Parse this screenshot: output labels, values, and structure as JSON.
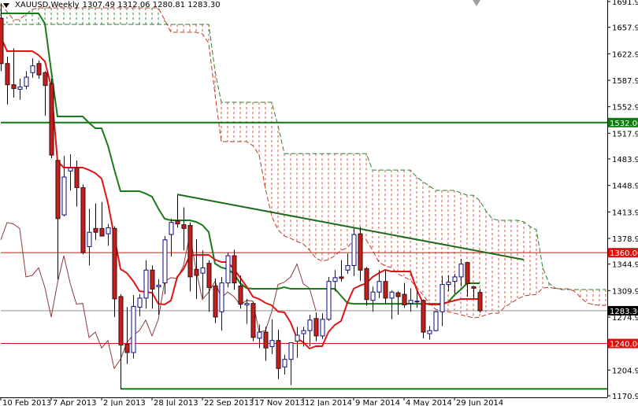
{
  "header": {
    "symbol": "XAUUSD,Weekly",
    "ohlc": "1307.49 1312.06 1280.81 1283.30"
  },
  "chart_data": {
    "type": "candlestick",
    "indicator": "Ichimoku Kinko Hyo",
    "interval": "weekly",
    "ylim": [
      1170.9,
      1691.9
    ],
    "y_ticks": [
      "1691.90",
      "1657.90",
      "1622.90",
      "1587.90",
      "1552.90",
      "1517.90",
      "1483.90",
      "1448.90",
      "1413.90",
      "1378.90",
      "1344.90",
      "1309.90",
      "1274.90",
      "1204.90",
      "1170.90"
    ],
    "x_ticks": [
      {
        "date": "2013-02-10",
        "label": "10 Feb 2013"
      },
      {
        "date": "2013-04-07",
        "label": "7 Apr 2013"
      },
      {
        "date": "2013-06-02",
        "label": "2 Jun 2013"
      },
      {
        "date": "2013-07-28",
        "label": "28 Jul 2013"
      },
      {
        "date": "2013-09-22",
        "label": "22 Sep 2013"
      },
      {
        "date": "2013-11-17",
        "label": "17 Nov 2013"
      },
      {
        "date": "2014-01-12",
        "label": "12 Jan 2014"
      },
      {
        "date": "2014-03-09",
        "label": "9 Mar 2014"
      },
      {
        "date": "2014-05-04",
        "label": "4 May 2014"
      },
      {
        "date": "2014-06-29",
        "label": "29 Jun 2014"
      }
    ],
    "candle_fields": [
      "date",
      "open",
      "high",
      "low",
      "close"
    ],
    "candles": [
      [
        "2013-02-10",
        1670,
        1690,
        1600,
        1610
      ],
      [
        "2013-02-17",
        1610,
        1619,
        1556,
        1582
      ],
      [
        "2013-02-24",
        1582,
        1630,
        1565,
        1577
      ],
      [
        "2013-03-03",
        1576,
        1590,
        1562,
        1579
      ],
      [
        "2013-03-10",
        1580,
        1600,
        1576,
        1592
      ],
      [
        "2013-03-17",
        1598,
        1617,
        1591,
        1607
      ],
      [
        "2013-03-24",
        1610,
        1614,
        1590,
        1595
      ],
      [
        "2013-03-31",
        1598,
        1600,
        1541,
        1581
      ],
      [
        "2013-04-07",
        1583,
        1590,
        1485,
        1489
      ],
      [
        "2013-04-14",
        1482,
        1482,
        1325,
        1405
      ],
      [
        "2013-04-21",
        1410,
        1488,
        1408,
        1460
      ],
      [
        "2013-04-28",
        1468,
        1490,
        1442,
        1472
      ],
      [
        "2013-05-05",
        1472,
        1482,
        1421,
        1446
      ],
      [
        "2013-05-12",
        1446,
        1450,
        1358,
        1360
      ],
      [
        "2013-05-19",
        1368,
        1418,
        1343,
        1387
      ],
      [
        "2013-05-26",
        1392,
        1425,
        1377,
        1387
      ],
      [
        "2013-06-02",
        1392,
        1427,
        1382,
        1382
      ],
      [
        "2013-06-09",
        1385,
        1398,
        1369,
        1393
      ],
      [
        "2013-06-16",
        1392,
        1395,
        1275,
        1299
      ],
      [
        "2013-06-23",
        1302,
        1305,
        1180,
        1238
      ],
      [
        "2013-06-30",
        1239,
        1288,
        1213,
        1228
      ],
      [
        "2013-07-07",
        1228,
        1304,
        1220,
        1289
      ],
      [
        "2013-07-14",
        1288,
        1305,
        1276,
        1300
      ],
      [
        "2013-07-21",
        1300,
        1350,
        1286,
        1337
      ],
      [
        "2013-07-28",
        1337,
        1343,
        1286,
        1312
      ],
      [
        "2013-08-04",
        1315,
        1325,
        1278,
        1317
      ],
      [
        "2013-08-11",
        1320,
        1382,
        1305,
        1377
      ],
      [
        "2013-08-18",
        1384,
        1405,
        1355,
        1400
      ],
      [
        "2013-08-25",
        1402,
        1436,
        1393,
        1398
      ],
      [
        "2013-09-01",
        1397,
        1420,
        1363,
        1392
      ],
      [
        "2013-09-08",
        1396,
        1400,
        1309,
        1328
      ],
      [
        "2013-09-15",
        1338,
        1378,
        1299,
        1330
      ],
      [
        "2013-09-22",
        1333,
        1363,
        1300,
        1340
      ],
      [
        "2013-09-29",
        1346,
        1350,
        1282,
        1314
      ],
      [
        "2013-10-06",
        1316,
        1326,
        1267,
        1275
      ],
      [
        "2013-10-13",
        1282,
        1328,
        1257,
        1320
      ],
      [
        "2013-10-20",
        1320,
        1360,
        1314,
        1356
      ],
      [
        "2013-10-27",
        1356,
        1364,
        1311,
        1320
      ],
      [
        "2013-11-03",
        1316,
        1330,
        1286,
        1292
      ],
      [
        "2013-11-10",
        1291,
        1299,
        1266,
        1293
      ],
      [
        "2013-11-17",
        1293,
        1295,
        1243,
        1248
      ],
      [
        "2013-11-24",
        1247,
        1265,
        1234,
        1255
      ],
      [
        "2013-12-01",
        1255,
        1262,
        1217,
        1234
      ],
      [
        "2013-12-08",
        1236,
        1272,
        1226,
        1244
      ],
      [
        "2013-12-15",
        1244,
        1258,
        1193,
        1207
      ],
      [
        "2013-12-22",
        1209,
        1225,
        1199,
        1219
      ],
      [
        "2013-12-29",
        1219,
        1241,
        1185,
        1241
      ],
      [
        "2014-01-05",
        1243,
        1262,
        1221,
        1251
      ],
      [
        "2014-01-12",
        1253,
        1262,
        1236,
        1257
      ],
      [
        "2014-01-19",
        1257,
        1278,
        1236,
        1271
      ],
      [
        "2014-01-26",
        1273,
        1281,
        1243,
        1250
      ],
      [
        "2014-02-02",
        1250,
        1280,
        1246,
        1272
      ],
      [
        "2014-02-09",
        1272,
        1328,
        1270,
        1322
      ],
      [
        "2014-02-16",
        1322,
        1337,
        1309,
        1327
      ],
      [
        "2014-02-23",
        1328,
        1350,
        1322,
        1326
      ],
      [
        "2014-03-02",
        1337,
        1359,
        1332,
        1343
      ],
      [
        "2014-03-09",
        1343,
        1392,
        1329,
        1384
      ],
      [
        "2014-03-16",
        1385,
        1394,
        1323,
        1337
      ],
      [
        "2014-03-23",
        1339,
        1341,
        1290,
        1298
      ],
      [
        "2014-03-30",
        1297,
        1315,
        1282,
        1308
      ],
      [
        "2014-04-06",
        1308,
        1337,
        1300,
        1322
      ],
      [
        "2014-04-13",
        1322,
        1337,
        1292,
        1300
      ],
      [
        "2014-04-20",
        1300,
        1310,
        1272,
        1308
      ],
      [
        "2014-04-27",
        1307,
        1309,
        1278,
        1302
      ],
      [
        "2014-05-04",
        1305,
        1320,
        1287,
        1291
      ],
      [
        "2014-05-11",
        1293,
        1313,
        1282,
        1297
      ],
      [
        "2014-05-18",
        1296,
        1310,
        1287,
        1296
      ],
      [
        "2014-05-25",
        1297,
        1298,
        1247,
        1255
      ],
      [
        "2014-06-01",
        1253,
        1263,
        1245,
        1257
      ],
      [
        "2014-06-08",
        1257,
        1283,
        1256,
        1282
      ],
      [
        "2014-06-15",
        1282,
        1329,
        1263,
        1318
      ],
      [
        "2014-06-22",
        1318,
        1330,
        1309,
        1321
      ],
      [
        "2014-06-29",
        1322,
        1332,
        1306,
        1328
      ],
      [
        "2014-07-06",
        1328,
        1352,
        1315,
        1345
      ],
      [
        "2014-07-13",
        1347,
        1347,
        1302,
        1319
      ],
      [
        "2014-07-20",
        1315,
        1315,
        1299,
        1313
      ],
      [
        "2014-07-27",
        1307.49,
        1312.06,
        1280.81,
        1283.3
      ]
    ],
    "tenkan_sen": [
      1645.1,
      1626.4,
      1626.4,
      1626.4,
      1626.4,
      1626.4,
      1621.2,
      1612.9,
      1579.6,
      1480.8,
      1472.5,
      1472.5,
      1472.5,
      1472.5,
      1469.3,
      1465.2,
      1457.9,
      1425.7,
      1381.9,
      1338.3,
      1333.1,
      1322.7,
      1309.2,
      1308.1,
      1307.1,
      1292.5,
      1291.5,
      1296.7,
      1327.9,
      1338.3,
      1356,
      1357,
      1357,
      1357,
      1350.8,
      1347.7,
      1347.7,
      1338.3,
      1326.9,
      1315.4,
      1301.9,
      1298.8,
      1293.6,
      1290.4,
      1282.1,
      1281.1,
      1267.6,
      1246.8,
      1241.6,
      1233.3,
      1236.4,
      1236.4,
      1255.1,
      1264.5,
      1269.7,
      1293.6,
      1312.3,
      1316.5,
      1319.6,
      1327.9,
      1333.1,
      1337.3,
      1335.2,
      1335.2,
      1335.2,
      1335.2,
      1311.3,
      1293.6,
      1291.5,
      1291.5,
      1291.5,
      1294.6,
      1296.7,
      1298.8,
      1298.8,
      1298.8,
      1298.8
    ],
    "kijun_sen": [
      1676.3,
      1676.3,
      1676.3,
      1676.3,
      1676.3,
      1676.3,
      1676.3,
      1662.8,
      1600.4,
      1540.1,
      1540.1,
      1540.1,
      1540.1,
      1540.1,
      1531.7,
      1524.5,
      1524.5,
      1501.6,
      1470.4,
      1441.3,
      1441.3,
      1441.3,
      1441.3,
      1438.1,
      1434,
      1418.4,
      1404.9,
      1402.8,
      1402.8,
      1402.8,
      1402.8,
      1400.7,
      1396.5,
      1387.2,
      1345.6,
      1340.4,
      1338.3,
      1332.1,
      1319.6,
      1313.3,
      1312.3,
      1312.3,
      1312.3,
      1312.3,
      1312.3,
      1314.4,
      1312.3,
      1312.3,
      1312.3,
      1312.3,
      1312.3,
      1312.3,
      1312.3,
      1312.3,
      1303,
      1293.6,
      1292.5,
      1292.5,
      1292.5,
      1292.5,
      1292.5,
      1292.5,
      1292.5,
      1292.5,
      1292.5,
      1292.5,
      1292.5,
      1292.5,
      1292.5,
      1292.5,
      1292.5,
      1294.6,
      1304,
      1311.3,
      1319.6,
      1319.6,
      1319.6
    ],
    "senkou_span_a": [
      1688.8,
      1678.4,
      1668,
      1668,
      1675.3,
      1681.5,
      1683.6,
      1683.6,
      1683.6,
      1683.6,
      1683.6,
      1683.6,
      1683.6,
      1683.6,
      1683.6,
      1683.6,
      1683.6,
      1683.6,
      1683.6,
      1683.6,
      1683.6,
      1683.6,
      1683.6,
      1683.6,
      1683.6,
      1683.6,
      1668,
      1651.3,
      1651.3,
      1651.3,
      1651.3,
      1651.3,
      1649.2,
      1636.8,
      1569.2,
      1506.8,
      1506.8,
      1506.8,
      1506.8,
      1506.8,
      1501.6,
      1489.1,
      1444.4,
      1408,
      1390.3,
      1382,
      1378.9,
      1374.7,
      1371.6,
      1363.3,
      1352.9,
      1348.7,
      1350.8,
      1356,
      1363.3,
      1366.4,
      1376.8,
      1378.9,
      1376.8,
      1363.3,
      1347.7,
      1342.5,
      1340.4,
      1332.1,
      1327.9,
      1323.7,
      1314.4,
      1304,
      1293.6,
      1285.3,
      1282,
      1282,
      1280,
      1278,
      1276,
      1273.8,
      1274.9,
      1278,
      1280,
      1280,
      1288.4,
      1293.6,
      1298.8,
      1302.9,
      1304,
      1305,
      1313.3,
      1314.4,
      1312.3,
      1312.3,
      1312.3,
      1309.2,
      1300.9,
      1293.6,
      1291.5,
      1290.4,
      1290.4
    ],
    "senkou_span_b": [
      1661.7,
      1661.7,
      1661.7,
      1661.7,
      1661.7,
      1661.7,
      1661.7,
      1661.7,
      1661.7,
      1661.7,
      1661.7,
      1661.7,
      1661.7,
      1661.7,
      1661.7,
      1661.7,
      1661.7,
      1661.7,
      1661.7,
      1661.7,
      1661.7,
      1661.7,
      1661.7,
      1661.7,
      1661.7,
      1661.7,
      1661.7,
      1661.7,
      1661.7,
      1661.7,
      1661.7,
      1661.7,
      1661.7,
      1661.7,
      1600,
      1558.8,
      1558.8,
      1558.8,
      1558.8,
      1558.8,
      1558.8,
      1558.8,
      1558.8,
      1558.8,
      1527.6,
      1491,
      1491,
      1491,
      1491,
      1491,
      1491,
      1491,
      1491,
      1491,
      1491,
      1491,
      1491,
      1491,
      1491,
      1469.3,
      1469.3,
      1469.3,
      1469.3,
      1469.3,
      1469.3,
      1469.3,
      1460,
      1453.7,
      1448.5,
      1442.3,
      1442.3,
      1442.3,
      1442.3,
      1439,
      1436,
      1436,
      1428.8,
      1415.3,
      1404.9,
      1402.8,
      1402.8,
      1402.8,
      1402.8,
      1400.7,
      1394.5,
      1390.3,
      1340.4,
      1319.6,
      1313.3,
      1311.3,
      1311.3,
      1311.3,
      1311.3,
      1311.3,
      1311.3,
      1311.3,
      1311.3
    ],
    "chikou_shift": 26,
    "horizontal_lines": [
      {
        "price": 1532.0,
        "label": "1532.00",
        "color": "#137a13",
        "start": "2013-02-10"
      },
      {
        "price": 1360.0,
        "label": "1360.00",
        "color": "#e01010",
        "start": "2013-02-10"
      },
      {
        "price": 1283.3,
        "label": "1283.30",
        "color": "#909090",
        "start": "2013-02-10",
        "label_color": "#000000"
      },
      {
        "price": 1240.0,
        "label": "1240.00",
        "color": "#e01010",
        "start": "2013-02-10"
      },
      {
        "price": 1180.0,
        "label": "",
        "color": "#137a13",
        "start": "2013-06-23"
      }
    ],
    "trendline": {
      "from": [
        "2013-08-25",
        1437
      ],
      "to": [
        "2014-09-14",
        1350.8
      ],
      "color": "#1d6b1d"
    },
    "colors": {
      "bull_body": "#ffffff",
      "bull_outline": "#0a0a8c",
      "bear_body": "#c0201e",
      "bear_outline": "#3a0a0a",
      "tenkan": "#e01414",
      "kijun": "#1a7a1a",
      "chikou": "#8b3a3a",
      "span_a": "#c0392b",
      "span_b": "#2e7d32",
      "cloud_bear": "#d05a3a",
      "cloud_bull": "#3a8a3a"
    }
  }
}
